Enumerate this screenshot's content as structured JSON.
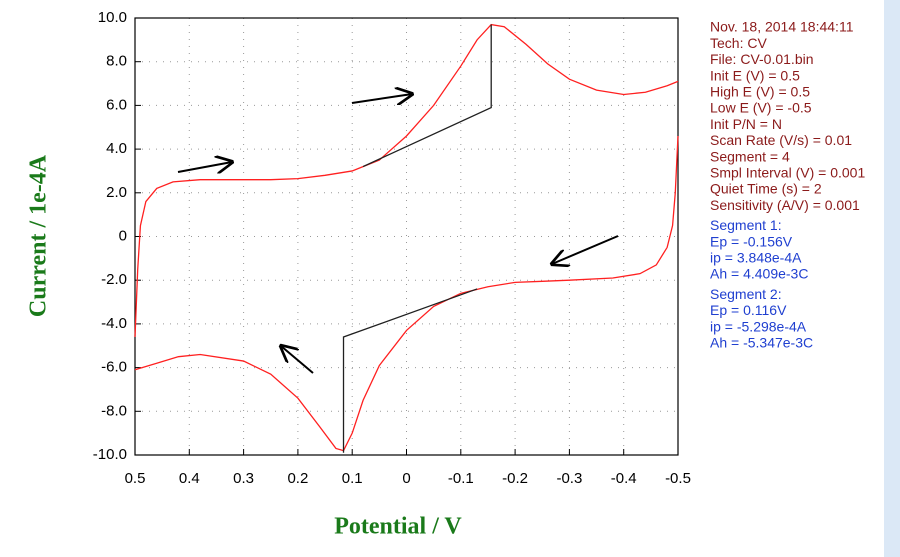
{
  "chart_data": {
    "type": "line",
    "y_label": "Current / 1e-4A",
    "x_label": "Potential / V",
    "xlim": [
      0.5,
      -0.5
    ],
    "ylim": [
      -10,
      10
    ],
    "xticks": [
      0.5,
      0.4,
      0.3,
      0.2,
      0.1,
      0,
      -0.1,
      -0.2,
      -0.3,
      -0.4,
      -0.5
    ],
    "yticks": [
      {
        "value": 10,
        "label": "10.0"
      },
      {
        "value": 8,
        "label": "8.0"
      },
      {
        "value": 6,
        "label": "6.0"
      },
      {
        "value": 4,
        "label": "4.0"
      },
      {
        "value": 2,
        "label": "2.0"
      },
      0,
      {
        "value": -2,
        "label": "-2.0"
      },
      {
        "value": -4,
        "label": "-4.0"
      },
      {
        "value": -6,
        "label": "-6.0"
      },
      {
        "value": -8,
        "label": "-8.0"
      },
      {
        "value": -10,
        "label": "-10.0"
      }
    ],
    "grid": true,
    "series": [
      {
        "color": "#ff2020",
        "x": [
          0.5,
          0.495,
          0.49,
          0.48,
          0.46,
          0.43,
          0.38,
          0.3,
          0.25,
          0.2,
          0.15,
          0.1,
          0.05,
          0.0,
          -0.05,
          -0.1,
          -0.13,
          -0.156,
          -0.18,
          -0.22,
          -0.26,
          -0.3,
          -0.35,
          -0.4,
          -0.44,
          -0.48,
          -0.5
        ],
        "values": [
          -4.6,
          -1.5,
          0.5,
          1.6,
          2.2,
          2.5,
          2.6,
          2.6,
          2.6,
          2.65,
          2.8,
          3.0,
          3.5,
          4.6,
          6.0,
          7.8,
          9.0,
          9.7,
          9.6,
          8.8,
          7.9,
          7.2,
          6.7,
          6.5,
          6.6,
          6.9,
          7.1
        ]
      },
      {
        "color": "#ff2020",
        "x": [
          -0.5,
          -0.495,
          -0.49,
          -0.48,
          -0.46,
          -0.43,
          -0.38,
          -0.3,
          -0.25,
          -0.2,
          -0.15,
          -0.1,
          -0.05,
          0.0,
          0.05,
          0.08,
          0.1,
          0.116,
          0.13,
          0.16,
          0.2,
          0.25,
          0.3,
          0.38,
          0.42,
          0.46,
          0.5
        ],
        "values": [
          4.6,
          2.0,
          0.5,
          -0.5,
          -1.3,
          -1.7,
          -1.9,
          -2.0,
          -2.05,
          -2.1,
          -2.3,
          -2.6,
          -3.2,
          -4.3,
          -5.9,
          -7.5,
          -9.0,
          -9.8,
          -9.7,
          -8.7,
          -7.4,
          -6.3,
          -5.7,
          -5.4,
          -5.5,
          -5.8,
          -6.1
        ]
      },
      {
        "color": "#202020",
        "x": [
          0.08,
          -0.156,
          -0.156
        ],
        "values": [
          3.2,
          5.9,
          9.7
        ]
      },
      {
        "color": "#202020",
        "x": [
          -0.13,
          0.116,
          0.116
        ],
        "values": [
          -2.4,
          -4.6,
          -9.9
        ]
      }
    ]
  },
  "panel": {
    "info": [
      "Nov. 18, 2014   18:44:11",
      "Tech: CV",
      "File: CV-0.01.bin",
      "Init E (V) = 0.5",
      "High E (V) = 0.5",
      "Low E (V) = -0.5",
      "Init P/N = N",
      "Scan Rate (V/s) = 0.01",
      "Segment = 4",
      "Smpl Interval (V) = 0.001",
      "Quiet Time (s) = 2",
      "Sensitivity (A/V) = 0.001"
    ],
    "segment1": [
      "Segment 1:",
      "Ep = -0.156V",
      "ip = 3.848e-4A",
      "Ah = 4.409e-3C"
    ],
    "segment2": [
      "Segment 2:",
      "Ep = 0.116V",
      "ip = -5.298e-4A",
      "Ah = -5.347e-3C"
    ]
  }
}
